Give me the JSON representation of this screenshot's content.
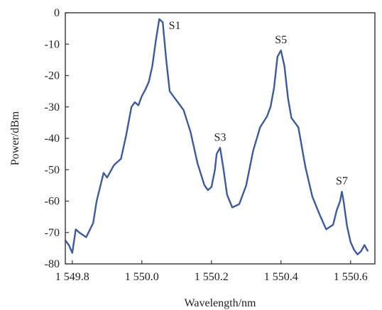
{
  "chart_data": {
    "type": "line",
    "title": "",
    "xlabel": "Wavelength/nm",
    "ylabel": "Power/dBm",
    "xlim": [
      1549.78,
      1550.67
    ],
    "ylim": [
      -80,
      0
    ],
    "x_ticks": [
      {
        "value": 1549.8,
        "label": "1 549.8"
      },
      {
        "value": 1550.0,
        "label": "1 550.0"
      },
      {
        "value": 1550.2,
        "label": "1 550.2"
      },
      {
        "value": 1550.4,
        "label": "1 550.4"
      },
      {
        "value": 1550.6,
        "label": "1 550.6"
      }
    ],
    "y_ticks": [
      {
        "value": 0,
        "label": "0"
      },
      {
        "value": -10,
        "label": "-10"
      },
      {
        "value": -20,
        "label": "-20"
      },
      {
        "value": -30,
        "label": "-30"
      },
      {
        "value": -40,
        "label": "-40"
      },
      {
        "value": -50,
        "label": "-50"
      },
      {
        "value": -60,
        "label": "-60"
      },
      {
        "value": -70,
        "label": "-70"
      },
      {
        "value": -80,
        "label": "-80"
      }
    ],
    "grid": false,
    "line_color": "#3d5a9e",
    "series": [
      {
        "x": [
          1549.78,
          1549.79,
          1549.8,
          1549.81,
          1549.82,
          1549.84,
          1549.86,
          1549.87,
          1549.88,
          1549.89,
          1549.9,
          1549.92,
          1549.94,
          1549.955,
          1549.97,
          1549.98,
          1549.99,
          1550.0,
          1550.01,
          1550.02,
          1550.03,
          1550.04,
          1550.05,
          1550.06,
          1550.07,
          1550.08,
          1550.1,
          1550.12,
          1550.14,
          1550.16,
          1550.18,
          1550.19,
          1550.2,
          1550.21,
          1550.215,
          1550.225,
          1550.235,
          1550.245,
          1550.26,
          1550.28,
          1550.3,
          1550.32,
          1550.34,
          1550.36,
          1550.37,
          1550.38,
          1550.39,
          1550.4,
          1550.41,
          1550.42,
          1550.43,
          1550.45,
          1550.47,
          1550.49,
          1550.51,
          1550.53,
          1550.55,
          1550.56,
          1550.57,
          1550.575,
          1550.58,
          1550.59,
          1550.6,
          1550.61,
          1550.62,
          1550.63,
          1550.64,
          1550.65
        ],
        "y": [
          -72.5,
          -74,
          -76.5,
          -69,
          -70,
          -71.5,
          -67,
          -60,
          -55.5,
          -51,
          -52.5,
          -48.5,
          -46.5,
          -39,
          -30,
          -28.5,
          -29.5,
          -26.5,
          -24.5,
          -22,
          -17,
          -9,
          -2,
          -3,
          -15,
          -25,
          -28,
          -31,
          -38,
          -48,
          -55,
          -56.5,
          -55.5,
          -50,
          -45,
          -43,
          -50,
          -58,
          -62,
          -61,
          -55,
          -44,
          -36.5,
          -33,
          -30,
          -24,
          -14,
          -12,
          -17,
          -27,
          -33.5,
          -36.5,
          -49,
          -58.5,
          -64,
          -69,
          -67.5,
          -63,
          -60,
          -57,
          -60,
          -68,
          -73,
          -75.5,
          -77,
          -76,
          -74,
          -76
        ]
      }
    ],
    "annotations": [
      {
        "text": "S1",
        "x": 1550.065,
        "y": -2
      },
      {
        "text": "S3",
        "x": 1550.225,
        "y": -43
      },
      {
        "text": "S5",
        "x": 1550.4,
        "y": -12
      },
      {
        "text": "S7",
        "x": 1550.575,
        "y": -57
      }
    ]
  }
}
